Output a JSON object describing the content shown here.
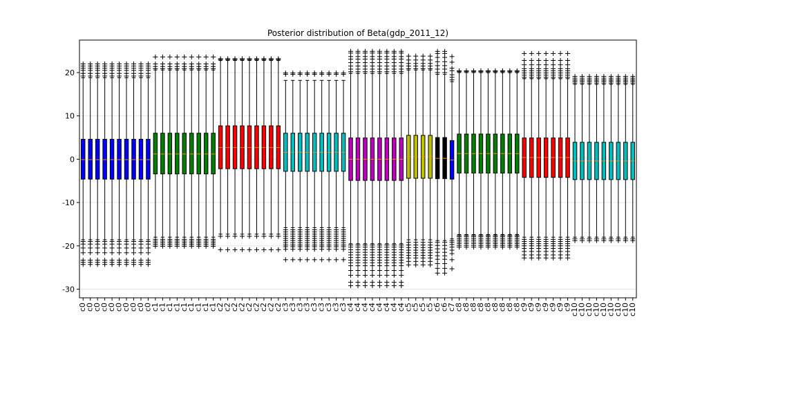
{
  "chart_data": {
    "type": "box",
    "title": "Posterior distribution of Beta(gdp_2011_12)",
    "xlabel": "",
    "ylabel": "",
    "ylim": [
      -32,
      27.5
    ],
    "yticks": [
      -30,
      -20,
      -10,
      0,
      10,
      20
    ],
    "grid": "horizontal",
    "legend": "none",
    "groups": [
      {
        "label": "c0",
        "count": 10,
        "color": "#0000ff",
        "q1": -4.6,
        "median": -0.1,
        "q3": 4.6,
        "whislo": -18.6,
        "whishi": 18.8,
        "fliers": [
          -24.3,
          -23.8,
          -23.3,
          -21.6,
          -20.5,
          -19.6,
          -19.0,
          19.2,
          19.8,
          20.5,
          21.0,
          21.5,
          22.0
        ]
      },
      {
        "label": "c1",
        "count": 9,
        "color": "#008000",
        "q1": -3.4,
        "median": 1.2,
        "q3": 6.0,
        "whislo": -18.0,
        "whishi": 20.6,
        "fliers": [
          -20.1,
          -19.7,
          -19.3,
          -18.9,
          -18.5,
          20.9,
          21.4,
          22.0,
          23.6
        ]
      },
      {
        "label": "c2",
        "count": 9,
        "color": "#ff0000",
        "q1": -2.2,
        "median": 2.7,
        "q3": 7.7,
        "whislo": -17.3,
        "whishi": 22.8,
        "fliers": [
          -20.9,
          -17.8,
          23.0,
          23.2
        ]
      },
      {
        "label": "c3",
        "count": 9,
        "color": "#00bfbf",
        "q1": -2.8,
        "median": 1.6,
        "q3": 6.0,
        "whislo": -15.8,
        "whishi": 18.2,
        "fliers": [
          -23.2,
          -20.8,
          -20.2,
          -19.8,
          -19.3,
          -18.8,
          -18.3,
          -17.8,
          -17.3,
          -16.8,
          -16.3,
          19.6,
          19.9
        ]
      },
      {
        "label": "c4",
        "count": 8,
        "color": "#bf00bf",
        "q1": -4.9,
        "median": 0.0,
        "q3": 4.9,
        "whislo": -19.5,
        "whishi": 19.8,
        "fliers": [
          -29.2,
          -28.4,
          -26.8,
          -25.7,
          -24.6,
          -23.9,
          -23.3,
          -22.7,
          -22.1,
          -21.5,
          -20.9,
          -20.3,
          -19.8,
          20.2,
          20.8,
          21.5,
          22.3,
          23.1,
          23.7,
          24.5,
          24.9
        ]
      },
      {
        "label": "c5",
        "count": 4,
        "color": "#bfbf00",
        "q1": -4.4,
        "median": 0.6,
        "q3": 5.5,
        "whislo": -18.6,
        "whishi": 20.6,
        "fliers": [
          -24.4,
          -23.6,
          -22.8,
          -22.2,
          -21.6,
          -21.0,
          -20.4,
          -19.8,
          -19.2,
          20.9,
          21.5,
          22.1,
          22.9,
          23.8
        ]
      },
      {
        "label": "c6",
        "count": 2,
        "color": "#000000",
        "q1": -4.5,
        "median": 0.2,
        "q3": 5.0,
        "whislo": -18.8,
        "whishi": 19.6,
        "fliers": [
          -26.3,
          -25.2,
          -24.1,
          -23.1,
          -22.3,
          -21.5,
          -20.7,
          -19.9,
          -19.2,
          20.0,
          20.8,
          21.6,
          22.5,
          23.5,
          24.4,
          24.9
        ]
      },
      {
        "label": "c7",
        "count": 1,
        "color": "#0000ff",
        "q1": -4.6,
        "median": -0.2,
        "q3": 4.3,
        "whislo": -18.4,
        "whishi": 17.9,
        "fliers": [
          -25.3,
          -23.2,
          -21.8,
          -21.0,
          -20.3,
          -19.7,
          -19.2,
          -18.8,
          18.3,
          18.9,
          19.5,
          20.4,
          21.0,
          22.4,
          23.7
        ]
      },
      {
        "label": "c8",
        "count": 9,
        "color": "#008000",
        "q1": -3.2,
        "median": 1.3,
        "q3": 5.8,
        "whislo": -17.4,
        "whishi": 20.0,
        "fliers": [
          -20.3,
          -19.9,
          -19.5,
          -19.1,
          -18.7,
          -18.3,
          -17.9,
          -17.6,
          20.2,
          20.4
        ]
      },
      {
        "label": "c9",
        "count": 7,
        "color": "#ff0000",
        "q1": -4.2,
        "median": 0.4,
        "q3": 4.9,
        "whislo": -18.0,
        "whishi": 18.6,
        "fliers": [
          -22.8,
          -22.1,
          -21.3,
          -20.6,
          -20.0,
          -19.5,
          -19.0,
          -18.5,
          18.9,
          19.4,
          19.9,
          20.4,
          20.9,
          21.8,
          22.8,
          24.4
        ]
      },
      {
        "label": "c10",
        "count": 9,
        "color": "#00bfbf",
        "q1": -4.7,
        "median": -0.4,
        "q3": 3.9,
        "whislo": -18.0,
        "whishi": 17.3,
        "fliers": [
          -18.8,
          -18.4,
          17.6,
          18.0,
          18.3,
          18.7,
          19.1
        ]
      }
    ]
  }
}
